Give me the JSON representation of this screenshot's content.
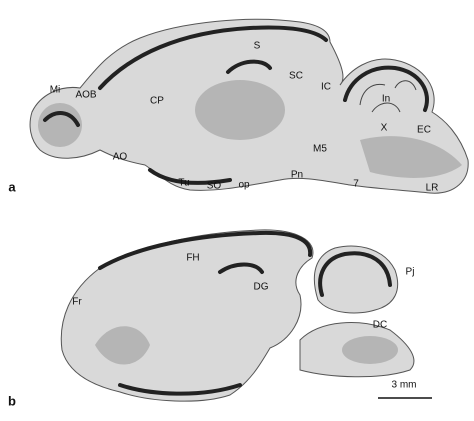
{
  "panels": [
    {
      "label": "a",
      "annotations": [
        "Mi",
        "AOB",
        "CP",
        "S",
        "SC",
        "IC",
        "In",
        "X",
        "EC",
        "AO",
        "M5",
        "Pn",
        "Tu",
        "SO",
        "op",
        "7",
        "LR"
      ]
    },
    {
      "label": "b",
      "annotations": [
        "FH",
        "DG",
        "Pj",
        "Fr",
        "DC"
      ],
      "scale_bar": "3 mm"
    }
  ]
}
